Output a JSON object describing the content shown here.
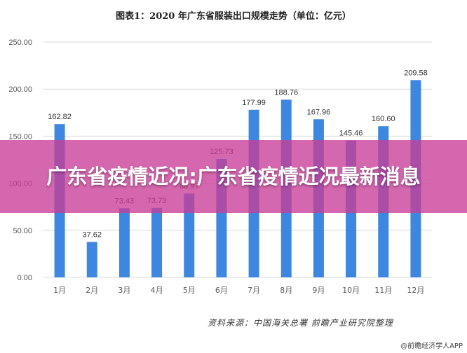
{
  "overlay": {
    "headline": "广东省疫情近况:广东省疫情近况最新消息"
  },
  "source_note": "资料来源：中国海关总署  前瞻产业研究院整理",
  "credit": "@前瞻经济学人APP",
  "colors": {
    "bar": "#3e87e0",
    "grid": "#d9d9d9",
    "axis_text": "#595959",
    "banner": "#c83c96"
  },
  "chart_data": {
    "type": "bar",
    "title": "图表1：2020 年广东省服装出口规模走势（单位：亿元）",
    "categories": [
      "1月",
      "2月",
      "3月",
      "4月",
      "5月",
      "6月",
      "7月",
      "8月",
      "9月",
      "10月",
      "11月",
      "12月"
    ],
    "values": [
      162.82,
      37.62,
      73.43,
      73.73,
      88.97,
      125.73,
      177.99,
      188.76,
      167.96,
      145.46,
      160.6,
      209.58
    ],
    "value_labels": [
      "162.82",
      "37.62",
      "73.43",
      "73.73",
      "88.97",
      "125.73",
      "177.99",
      "188.76",
      "167.96",
      "145.46",
      "160.60",
      "209.58"
    ],
    "ylim": [
      0,
      250
    ],
    "yticks": [
      0,
      50,
      100,
      150,
      200,
      250
    ],
    "ytick_labels": [
      "0.00",
      "50.00",
      "100.00",
      "150.00",
      "200.00",
      "250.00"
    ],
    "grid": true,
    "legend": "none"
  }
}
